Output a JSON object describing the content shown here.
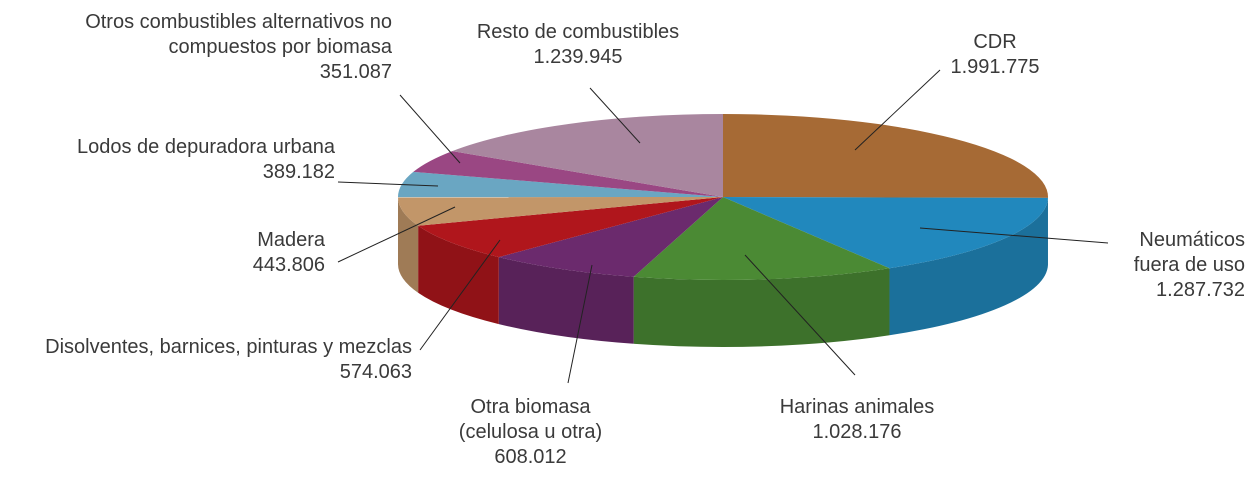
{
  "chart_data": {
    "type": "pie",
    "categories": [
      "CDR",
      "Neumáticos fuera de uso",
      "Harinas animales",
      "Otra biomasa (celulosa u otra)",
      "Disolventes, barnices, pinturas y mezclas",
      "Madera",
      "Lodos de depuradora urbana",
      "Otros combustibles alternativos no compuestos por biomasa",
      "Resto de combustibles"
    ],
    "values": [
      1991775,
      1287732,
      1028176,
      608012,
      574063,
      443806,
      389182,
      351087,
      1239945
    ],
    "value_labels": [
      "1.991.775",
      "1.287.732",
      "1.028.176",
      "608.012",
      "574.063",
      "443.806",
      "389.182",
      "351.087",
      "1.239.945"
    ],
    "colors": [
      "#a66a35",
      "#2188bd",
      "#4b8a34",
      "#6b2a6d",
      "#b0161c",
      "#c29669",
      "#6aa6c2",
      "#9a4783",
      "#a9869f"
    ]
  }
}
